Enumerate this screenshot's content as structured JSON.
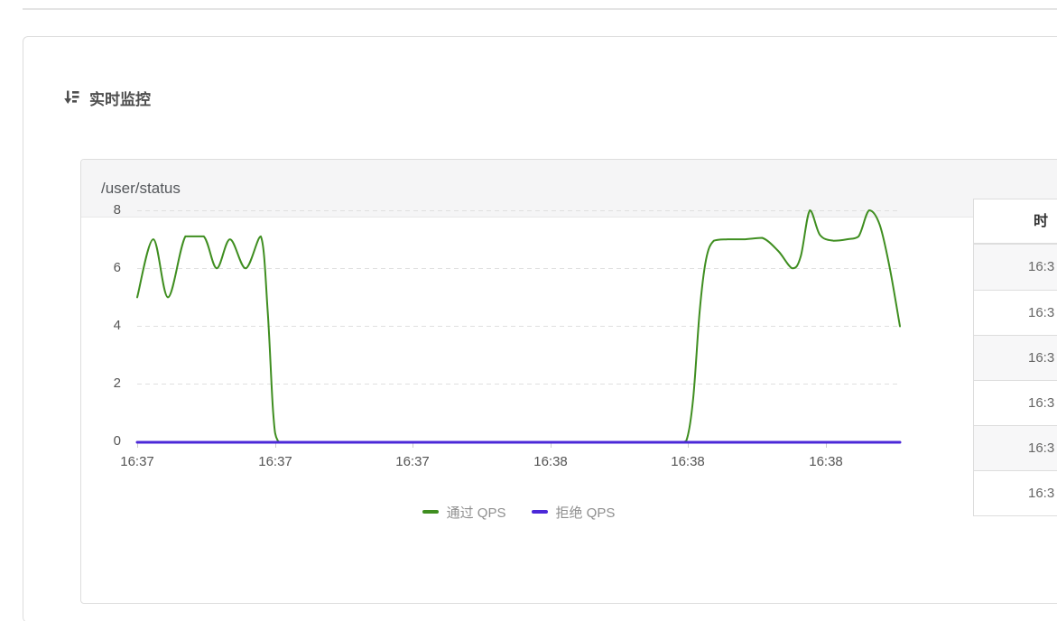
{
  "card": {
    "title": "实时监控"
  },
  "panel": {
    "title": "/user/status"
  },
  "chart_data": {
    "type": "line",
    "title": "/user/status",
    "xlabel": "",
    "ylabel": "",
    "ylim": [
      0,
      8
    ],
    "y_tick_labels": [
      "8",
      "6",
      "4",
      "2",
      "0"
    ],
    "x_tick_labels": [
      "16:37",
      "16:37",
      "16:37",
      "16:38",
      "16:38",
      "16:38"
    ],
    "x_tick_seconds": [
      0,
      30,
      60,
      90,
      120,
      150
    ],
    "x_range_seconds": [
      0,
      166
    ],
    "grid": "horizontal-dashed",
    "legend_position": "bottom",
    "series": [
      {
        "name": "通过 QPS",
        "color": "#3f8e20",
        "points": [
          [
            0,
            5
          ],
          [
            3.5,
            7
          ],
          [
            6.7,
            5
          ],
          [
            10.5,
            7.1
          ],
          [
            14.5,
            7.1
          ],
          [
            17.3,
            6
          ],
          [
            20.2,
            7
          ],
          [
            23.6,
            6
          ],
          [
            26.9,
            7.1
          ],
          [
            28.4,
            4.5
          ],
          [
            29.6,
            1
          ],
          [
            30.6,
            0.05
          ],
          [
            33,
            0
          ],
          [
            50,
            0
          ],
          [
            70,
            0
          ],
          [
            90,
            0
          ],
          [
            110,
            0
          ],
          [
            117.5,
            0
          ],
          [
            119.5,
            0.05
          ],
          [
            121,
            1.5
          ],
          [
            122.4,
            4.5
          ],
          [
            123.8,
            6.3
          ],
          [
            125.5,
            6.95
          ],
          [
            128.5,
            7
          ],
          [
            132,
            7
          ],
          [
            136,
            7.05
          ],
          [
            139.5,
            6.6
          ],
          [
            142.6,
            6
          ],
          [
            144.4,
            6.4
          ],
          [
            146.4,
            8
          ],
          [
            148.6,
            7.15
          ],
          [
            151.5,
            6.95
          ],
          [
            154.5,
            7
          ],
          [
            157,
            7.1
          ],
          [
            159.3,
            8
          ],
          [
            161.6,
            7.5
          ],
          [
            163.8,
            6
          ],
          [
            166,
            4
          ]
        ]
      },
      {
        "name": "拒绝 QPS",
        "color": "#4b28d8",
        "points": [
          [
            0,
            0
          ],
          [
            166,
            0
          ]
        ]
      }
    ]
  },
  "table": {
    "header_label": "时",
    "rows": [
      "16:3",
      "16:3",
      "16:3",
      "16:3",
      "16:3",
      "16:3"
    ]
  }
}
